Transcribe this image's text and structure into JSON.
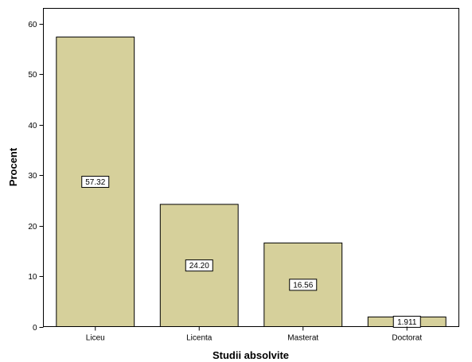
{
  "chart_data": {
    "type": "bar",
    "categories": [
      "Liceu",
      "Licenta",
      "Masterat",
      "Doctorat"
    ],
    "values": [
      57.32,
      24.2,
      16.56,
      1.911
    ],
    "value_labels": [
      "57.32",
      "24.20",
      "16.56",
      "1.911"
    ],
    "title": "",
    "xlabel": "Studii absolvite",
    "ylabel": "Procent",
    "ylim": [
      0,
      63
    ],
    "yticks": [
      0,
      10,
      20,
      30,
      40,
      50,
      60
    ],
    "grid": false,
    "legend": "none",
    "colors": {
      "bar_fill": "#d6d09b",
      "bar_stroke": "#000000",
      "plot_border": "#000000",
      "label_box_fill": "#ffffff"
    }
  }
}
